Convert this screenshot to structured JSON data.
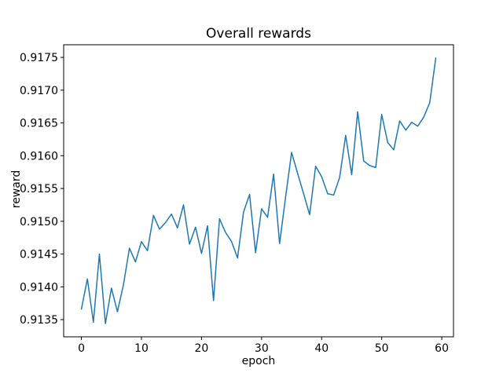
{
  "chart_data": {
    "type": "line",
    "title": "Overall rewards",
    "xlabel": "epoch",
    "ylabel": "reward",
    "grid": false,
    "legend": null,
    "line_color": "#1f77b4",
    "xticks": [
      0,
      10,
      20,
      30,
      40,
      50,
      60
    ],
    "yticks": [
      0.9135,
      0.914,
      0.9145,
      0.915,
      0.9155,
      0.916,
      0.9165,
      0.917,
      0.9175
    ],
    "ytick_labels": [
      "0.9135",
      "0.9140",
      "0.9145",
      "0.9150",
      "0.9155",
      "0.9160",
      "0.9165",
      "0.9170",
      "0.9175"
    ],
    "xlim": [
      -2.95,
      61.95
    ],
    "ylim": [
      0.9132375,
      0.9176925
    ],
    "series": [
      {
        "name": "reward",
        "x": [
          0,
          1,
          2,
          3,
          4,
          5,
          6,
          7,
          8,
          9,
          10,
          11,
          12,
          13,
          14,
          15,
          16,
          17,
          18,
          19,
          20,
          21,
          22,
          23,
          24,
          25,
          26,
          27,
          28,
          29,
          30,
          31,
          32,
          33,
          34,
          35,
          36,
          37,
          38,
          39,
          40,
          41,
          42,
          43,
          44,
          45,
          46,
          47,
          48,
          49,
          50,
          51,
          52,
          53,
          54,
          55,
          56,
          57,
          58,
          59
        ],
        "y": [
          0.91366,
          0.91412,
          0.91346,
          0.9145,
          0.91344,
          0.91398,
          0.91362,
          0.91403,
          0.91459,
          0.91438,
          0.91469,
          0.91455,
          0.91509,
          0.91488,
          0.91498,
          0.91511,
          0.9149,
          0.91525,
          0.91465,
          0.91491,
          0.91451,
          0.91493,
          0.91379,
          0.91504,
          0.91483,
          0.91469,
          0.91444,
          0.91514,
          0.91541,
          0.91452,
          0.91519,
          0.91506,
          0.91572,
          0.91466,
          0.91537,
          0.91605,
          0.91573,
          0.91542,
          0.9151,
          0.91584,
          0.91568,
          0.91542,
          0.9154,
          0.91567,
          0.91631,
          0.91571,
          0.91667,
          0.91592,
          0.91585,
          0.91582,
          0.91663,
          0.9162,
          0.91609,
          0.91653,
          0.91639,
          0.91651,
          0.91645,
          0.91659,
          0.91681,
          0.91749
        ]
      }
    ]
  }
}
